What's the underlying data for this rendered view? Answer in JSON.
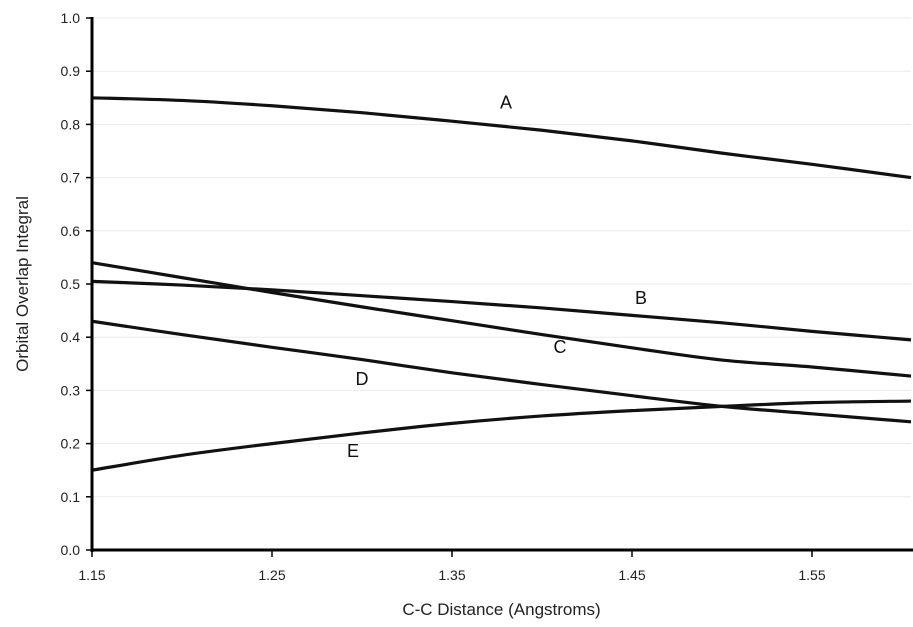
{
  "chart_data": {
    "type": "line",
    "xlabel": "C-C Distance (Angstroms)",
    "ylabel": "Orbital Overlap Integral",
    "xlim": [
      1.15,
      1.605
    ],
    "ylim": [
      0.0,
      1.0
    ],
    "x_ticks": [
      "1.15",
      "1.25",
      "1.35",
      "1.45",
      "1.55"
    ],
    "y_ticks": [
      "0.0",
      "0.1",
      "0.2",
      "0.3",
      "0.4",
      "0.5",
      "0.6",
      "0.7",
      "0.8",
      "0.9",
      "1.0"
    ],
    "grid": true,
    "series": [
      {
        "name": "A",
        "label_at": [
          1.38,
          0.83
        ],
        "points": [
          [
            1.15,
            0.85
          ],
          [
            1.2,
            0.845
          ],
          [
            1.25,
            0.835
          ],
          [
            1.3,
            0.822
          ],
          [
            1.35,
            0.806
          ],
          [
            1.4,
            0.789
          ],
          [
            1.45,
            0.769
          ],
          [
            1.5,
            0.746
          ],
          [
            1.55,
            0.725
          ],
          [
            1.605,
            0.7
          ]
        ]
      },
      {
        "name": "B",
        "label_at": [
          1.455,
          0.462
        ],
        "points": [
          [
            1.15,
            0.505
          ],
          [
            1.2,
            0.498
          ],
          [
            1.25,
            0.489
          ],
          [
            1.3,
            0.478
          ],
          [
            1.35,
            0.467
          ],
          [
            1.4,
            0.455
          ],
          [
            1.45,
            0.441
          ],
          [
            1.5,
            0.427
          ],
          [
            1.55,
            0.411
          ],
          [
            1.605,
            0.395
          ]
        ]
      },
      {
        "name": "C",
        "label_at": [
          1.41,
          0.37
        ],
        "points": [
          [
            1.15,
            0.54
          ],
          [
            1.2,
            0.512
          ],
          [
            1.25,
            0.484
          ],
          [
            1.3,
            0.457
          ],
          [
            1.35,
            0.431
          ],
          [
            1.4,
            0.405
          ],
          [
            1.45,
            0.38
          ],
          [
            1.5,
            0.357
          ],
          [
            1.55,
            0.344
          ],
          [
            1.605,
            0.327
          ]
        ]
      },
      {
        "name": "D",
        "label_at": [
          1.3,
          0.31
        ],
        "points": [
          [
            1.15,
            0.43
          ],
          [
            1.2,
            0.405
          ],
          [
            1.25,
            0.381
          ],
          [
            1.3,
            0.358
          ],
          [
            1.35,
            0.333
          ],
          [
            1.4,
            0.311
          ],
          [
            1.45,
            0.29
          ],
          [
            1.5,
            0.27
          ],
          [
            1.55,
            0.256
          ],
          [
            1.605,
            0.241
          ]
        ]
      },
      {
        "name": "E",
        "label_at": [
          1.295,
          0.175
        ],
        "points": [
          [
            1.15,
            0.15
          ],
          [
            1.2,
            0.178
          ],
          [
            1.25,
            0.2
          ],
          [
            1.3,
            0.22
          ],
          [
            1.35,
            0.238
          ],
          [
            1.4,
            0.252
          ],
          [
            1.45,
            0.262
          ],
          [
            1.5,
            0.27
          ],
          [
            1.55,
            0.277
          ],
          [
            1.605,
            0.28
          ]
        ]
      }
    ]
  }
}
